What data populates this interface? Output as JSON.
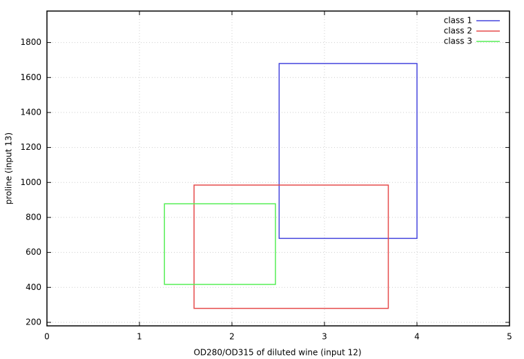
{
  "chart_data": {
    "type": "rectangle",
    "x_label": "OD280/OD315 of diluted wine (input 12)",
    "y_label": "proline (input 13)",
    "xlim": [
      0,
      5
    ],
    "xticks": [
      0,
      1,
      2,
      3,
      4,
      5
    ],
    "ylim": [
      180,
      1980
    ],
    "yticks": [
      200,
      400,
      600,
      800,
      1000,
      1200,
      1400,
      1600,
      1800
    ],
    "grid": true,
    "legend": "top-right",
    "series": [
      {
        "name": "class 1",
        "color": "#4444dd",
        "x": [
          2.51,
          4.0
        ],
        "values": [
          680,
          1680
        ]
      },
      {
        "name": "class 2",
        "color": "#e64a4a",
        "x": [
          1.59,
          3.69
        ],
        "values": [
          280,
          985
        ]
      },
      {
        "name": "class 3",
        "color": "#55ee55",
        "x": [
          1.27,
          2.47
        ],
        "values": [
          417,
          878
        ]
      }
    ]
  }
}
